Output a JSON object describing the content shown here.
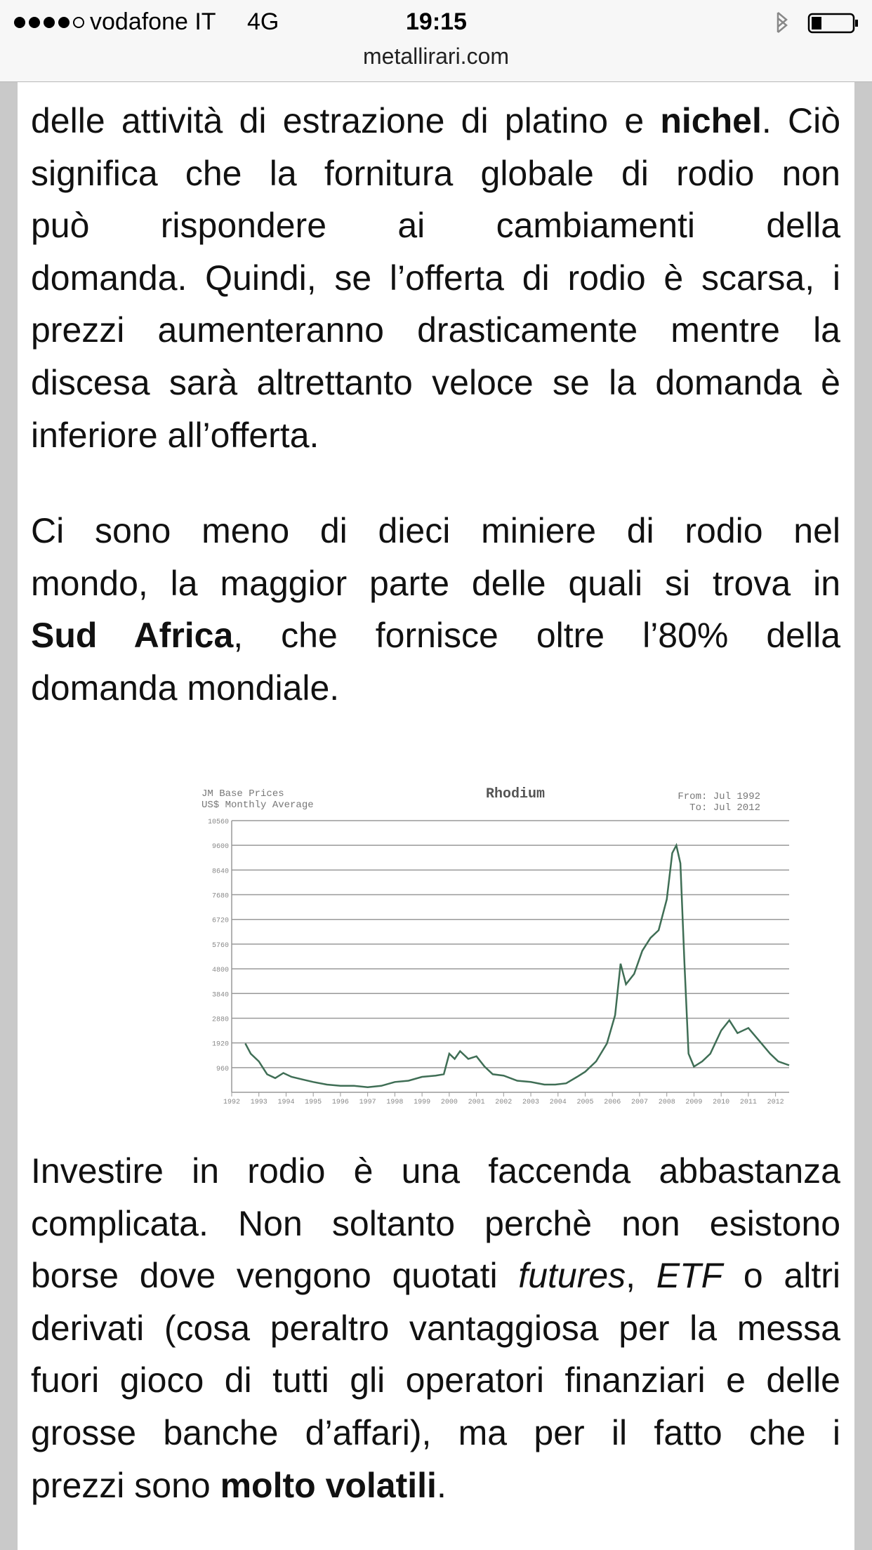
{
  "status_bar": {
    "carrier": "vodafone IT",
    "network": "4G",
    "time": "19:15"
  },
  "address_bar": {
    "url": "metallirari.com"
  },
  "paragraphs": [
    {
      "lines": [
        [
          "delle attività di estrazione di platino e ",
          {
            "text": "nichel",
            "style": "bold"
          },
          ". Ciò"
        ],
        [
          "significa che la fornitura globale di rodio non"
        ],
        [
          "può rispondere ai cambiamenti della"
        ],
        [
          "domanda. Quindi, se l’offerta di rodio è scarsa, i"
        ],
        [
          "prezzi aumenteranno drasticamente mentre la"
        ],
        [
          "discesa sarà altrettanto veloce se la domanda è"
        ],
        [
          "inferiore all’offerta."
        ]
      ]
    },
    {
      "lines": [
        [
          "Ci sono meno di dieci miniere di rodio nel"
        ],
        [
          "mondo, la maggior parte delle quali si trova in"
        ],
        [
          {
            "text": "Sud Africa",
            "style": "bold"
          },
          ", che fornisce oltre l’80% della"
        ],
        [
          "domanda mondiale."
        ]
      ]
    },
    {
      "lines": [
        [
          "Investire in rodio è una faccenda abbastanza"
        ],
        [
          "complicata. Non soltanto perchè non esistono"
        ],
        [
          "borse dove vengono quotati ",
          {
            "text": "futures",
            "style": "italic"
          },
          ", ",
          {
            "text": "ETF",
            "style": "italic"
          },
          " o altri"
        ],
        [
          "derivati (cosa peraltro vantaggiosa per la messa"
        ],
        [
          "fuori gioco di tutti gli operatori finanziari e delle"
        ],
        [
          "grosse banche d’affari), ma per il fatto che i"
        ],
        [
          "prezzi sono ",
          {
            "text": "molto volatili",
            "style": "bold"
          },
          "."
        ]
      ]
    }
  ],
  "chart_data": {
    "type": "line",
    "title": "Rhodium",
    "subtitle_left": [
      "JM Base Prices",
      "US$ Monthly Average"
    ],
    "subtitle_right": [
      "From: Jul 1992",
      "To: Jul 2012"
    ],
    "x": [
      1992.5,
      1992.7,
      1993.0,
      1993.3,
      1993.6,
      1993.9,
      1994.2,
      1994.6,
      1995.0,
      1995.5,
      1996.0,
      1996.5,
      1997.0,
      1997.5,
      1998.0,
      1998.5,
      1999.0,
      1999.5,
      1999.8,
      2000.0,
      2000.2,
      2000.4,
      2000.7,
      2001.0,
      2001.3,
      2001.6,
      2002.0,
      2002.5,
      2003.0,
      2003.5,
      2003.9,
      2004.3,
      2004.7,
      2005.0,
      2005.4,
      2005.8,
      2006.1,
      2006.3,
      2006.5,
      2006.8,
      2007.1,
      2007.4,
      2007.7,
      2008.0,
      2008.2,
      2008.35,
      2008.5,
      2008.65,
      2008.8,
      2009.0,
      2009.3,
      2009.6,
      2010.0,
      2010.3,
      2010.6,
      2011.0,
      2011.4,
      2011.8,
      2012.1,
      2012.5
    ],
    "values": [
      1900,
      1500,
      1200,
      700,
      550,
      750,
      600,
      500,
      400,
      300,
      250,
      250,
      200,
      250,
      400,
      450,
      600,
      650,
      700,
      1500,
      1300,
      1600,
      1300,
      1400,
      1000,
      700,
      650,
      450,
      400,
      300,
      300,
      350,
      600,
      800,
      1200,
      1900,
      3000,
      5000,
      4200,
      4600,
      5500,
      6000,
      6300,
      7500,
      9300,
      9600,
      8900,
      5000,
      1500,
      1000,
      1200,
      1500,
      2400,
      2800,
      2300,
      2500,
      2000,
      1500,
      1200,
      1050
    ],
    "color": "#3f6e55",
    "xlim": [
      1992,
      2012.5
    ],
    "xticks": [
      1992,
      1993,
      1994,
      1995,
      1996,
      1997,
      1998,
      1999,
      2000,
      2001,
      2002,
      2003,
      2004,
      2005,
      2006,
      2007,
      2008,
      2009,
      2010,
      2011,
      2012
    ],
    "ylim": [
      0,
      10560
    ],
    "yticks": [
      960,
      1920,
      2880,
      3840,
      4800,
      5760,
      6720,
      7680,
      8640,
      9600,
      10560
    ],
    "grid": true
  }
}
